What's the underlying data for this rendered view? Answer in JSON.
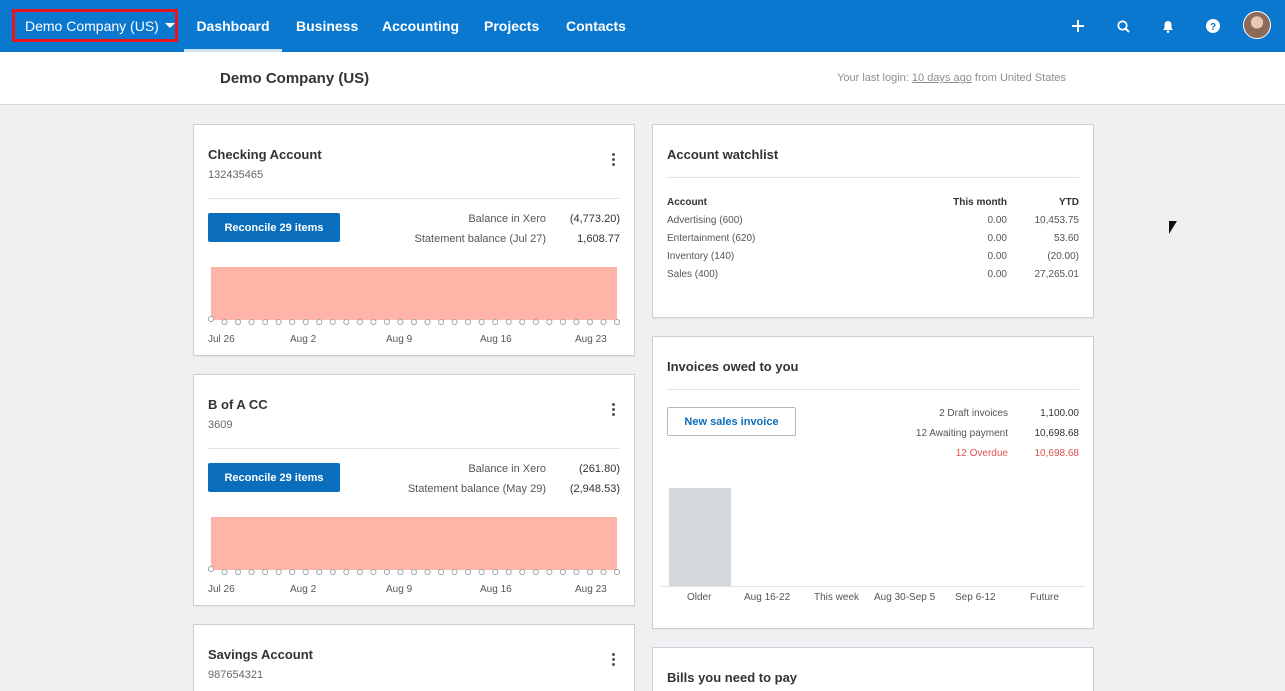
{
  "topnav": {
    "org_name": "Demo Company (US)",
    "items": [
      {
        "label": "Dashboard",
        "active": true
      },
      {
        "label": "Business"
      },
      {
        "label": "Accounting"
      },
      {
        "label": "Projects"
      },
      {
        "label": "Contacts"
      }
    ],
    "icons": [
      "plus-icon",
      "search-icon",
      "bell-icon",
      "help-icon",
      "avatar"
    ]
  },
  "header": {
    "title": "Demo Company (US)",
    "last_login_prefix": "Your last login: ",
    "last_login_link": "10 days ago",
    "last_login_suffix": " from United States"
  },
  "accounts": [
    {
      "name": "Checking Account",
      "number": "132435465",
      "reconcile_label": "Reconcile 29 items",
      "balance_label": "Balance in Xero",
      "balance_value": "(4,773.20)",
      "statement_label": "Statement balance (Jul 27)",
      "statement_value": "1,608.77",
      "x_ticks": [
        "Jul 26",
        "Aug 2",
        "Aug 9",
        "Aug 16",
        "Aug 23"
      ]
    },
    {
      "name": "B of A CC",
      "number": "3609",
      "reconcile_label": "Reconcile 29 items",
      "balance_label": "Balance in Xero",
      "balance_value": "(261.80)",
      "statement_label": "Statement balance (May 29)",
      "statement_value": "(2,948.53)",
      "x_ticks": [
        "Jul 26",
        "Aug 2",
        "Aug 9",
        "Aug 16",
        "Aug 23"
      ]
    },
    {
      "name": "Savings Account",
      "number": "987654321"
    }
  ],
  "watchlist": {
    "title": "Account watchlist",
    "headers": [
      "Account",
      "This month",
      "YTD"
    ],
    "rows": [
      [
        "Advertising (600)",
        "0.00",
        "10,453.75"
      ],
      [
        "Entertainment (620)",
        "0.00",
        "53.60"
      ],
      [
        "Inventory (140)",
        "0.00",
        "(20.00)"
      ],
      [
        "Sales (400)",
        "0.00",
        "27,265.01"
      ]
    ]
  },
  "invoices": {
    "title": "Invoices owed to you",
    "new_invoice_label": "New sales invoice",
    "draft_label": "2 Draft invoices",
    "draft_value": "1,100.00",
    "awaiting_label": "12 Awaiting payment",
    "awaiting_value": "10,698.68",
    "overdue_label": "12 Overdue",
    "overdue_value": "10,698.68",
    "overdue_color": "#d9534f",
    "bar_labels": [
      "Older",
      "Aug 16-22",
      "This week",
      "Aug 30-Sep 5",
      "Sep 6-12",
      "Future"
    ]
  },
  "bills": {
    "title": "Bills you need to pay"
  },
  "colors": {
    "nav_blue": "#0b78cf",
    "button_blue": "#0b6ebd",
    "chart_fill": "#ffb4a8",
    "highlight_red": "#e8141b"
  }
}
